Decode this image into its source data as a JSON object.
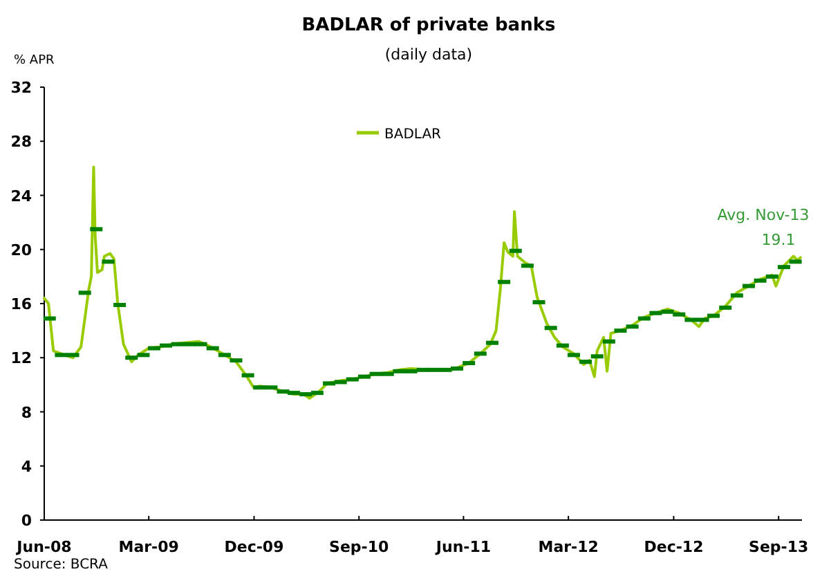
{
  "chart_data": {
    "type": "line",
    "title": "BADLAR of private banks",
    "subtitle": "(daily data)",
    "ylabel": "% APR",
    "xlim": [
      "2008-06-01",
      "2013-11-01"
    ],
    "xticks": [
      {
        "value": "2008-06-01",
        "label": "Jun-08"
      },
      {
        "value": "2009-03-01",
        "label": "Mar-09"
      },
      {
        "value": "2009-12-01",
        "label": "Dec-09"
      },
      {
        "value": "2010-09-01",
        "label": "Sep-10"
      },
      {
        "value": "2011-06-01",
        "label": "Jun-11"
      },
      {
        "value": "2012-03-01",
        "label": "Mar-12"
      },
      {
        "value": "2012-12-01",
        "label": "Dec-12"
      },
      {
        "value": "2013-09-01",
        "label": "Sep-13"
      }
    ],
    "ylim": [
      0,
      32
    ],
    "yticks": [
      0,
      4,
      8,
      12,
      16,
      20,
      24,
      28,
      32
    ],
    "grid": false,
    "legend": "top",
    "series": [
      {
        "name": "BADLAR",
        "color": "#99cc00",
        "marker": "none",
        "x": [
          "2008-06-01",
          "2008-06-12",
          "2008-06-25",
          "2008-07-15",
          "2008-08-15",
          "2008-09-05",
          "2008-09-25",
          "2008-10-02",
          "2008-10-08",
          "2008-10-12",
          "2008-10-18",
          "2008-10-30",
          "2008-11-05",
          "2008-11-20",
          "2008-11-30",
          "2008-12-10",
          "2008-12-25",
          "2009-01-15",
          "2009-02-01",
          "2009-03-01",
          "2009-04-01",
          "2009-05-01",
          "2009-06-01",
          "2009-07-10",
          "2009-08-10",
          "2009-09-10",
          "2009-10-15",
          "2009-11-10",
          "2009-11-30",
          "2009-12-15",
          "2010-01-15",
          "2010-02-15",
          "2010-03-15",
          "2010-04-10",
          "2010-04-25",
          "2010-05-20",
          "2010-06-10",
          "2010-07-15",
          "2010-08-15",
          "2010-09-15",
          "2010-10-15",
          "2010-11-15",
          "2010-12-15",
          "2011-01-15",
          "2011-03-01",
          "2011-05-01",
          "2011-06-15",
          "2011-07-15",
          "2011-08-10",
          "2011-08-25",
          "2011-09-05",
          "2011-09-15",
          "2011-09-25",
          "2011-10-08",
          "2011-10-12",
          "2011-10-20",
          "2011-11-10",
          "2011-11-25",
          "2011-12-10",
          "2012-01-05",
          "2012-01-25",
          "2012-02-15",
          "2012-03-15",
          "2012-04-10",
          "2012-04-25",
          "2012-05-08",
          "2012-05-15",
          "2012-06-01",
          "2012-06-10",
          "2012-06-20",
          "2012-07-15",
          "2012-08-15",
          "2012-09-15",
          "2012-10-15",
          "2012-11-15",
          "2012-12-15",
          "2013-01-15",
          "2013-02-05",
          "2013-02-20",
          "2013-03-15",
          "2013-04-15",
          "2013-05-15",
          "2013-06-15",
          "2013-07-15",
          "2013-08-15",
          "2013-08-25",
          "2013-09-15",
          "2013-10-10",
          "2013-10-20",
          "2013-10-28"
        ],
        "values": [
          16.4,
          16.0,
          12.5,
          12.3,
          12.0,
          12.8,
          17.0,
          18.0,
          26.1,
          21.0,
          18.3,
          18.5,
          19.5,
          19.7,
          19.3,
          16.0,
          13.0,
          11.7,
          12.2,
          12.7,
          12.8,
          13.0,
          13.1,
          13.2,
          12.8,
          12.3,
          11.7,
          10.7,
          9.8,
          9.9,
          9.8,
          9.5,
          9.3,
          9.3,
          9.0,
          9.5,
          10.1,
          10.3,
          10.4,
          10.6,
          10.8,
          10.9,
          11.1,
          11.2,
          11.1,
          11.1,
          11.6,
          12.3,
          13.0,
          14.0,
          17.0,
          20.5,
          19.8,
          19.5,
          22.8,
          19.5,
          19.0,
          18.8,
          16.5,
          14.5,
          13.5,
          12.8,
          12.3,
          11.5,
          11.8,
          10.6,
          12.5,
          13.5,
          11.0,
          13.8,
          14.0,
          14.4,
          15.0,
          15.3,
          15.6,
          15.3,
          14.8,
          14.3,
          14.9,
          15.1,
          15.8,
          16.8,
          17.3,
          17.8,
          18.1,
          17.3,
          18.8,
          19.5,
          19.2,
          19.4
        ]
      },
      {
        "type": "scatter",
        "color": "#008000",
        "marker": "square",
        "x": [
          "2008-06-15",
          "2008-07-15",
          "2008-08-15",
          "2008-09-15",
          "2008-10-15",
          "2008-11-15",
          "2008-12-15",
          "2009-01-15",
          "2009-02-15",
          "2009-03-15",
          "2009-04-15",
          "2009-05-15",
          "2009-06-15",
          "2009-07-15",
          "2009-08-15",
          "2009-09-15",
          "2009-10-15",
          "2009-11-15",
          "2009-12-15",
          "2010-01-15",
          "2010-02-15",
          "2010-03-15",
          "2010-04-15",
          "2010-05-15",
          "2010-06-15",
          "2010-07-15",
          "2010-08-15",
          "2010-09-15",
          "2010-10-15",
          "2010-11-15",
          "2010-12-15",
          "2011-01-15",
          "2011-02-15",
          "2011-03-15",
          "2011-04-15",
          "2011-05-15",
          "2011-06-15",
          "2011-07-15",
          "2011-08-15",
          "2011-09-15",
          "2011-10-15",
          "2011-11-15",
          "2011-12-15",
          "2012-01-15",
          "2012-02-15",
          "2012-03-15",
          "2012-04-15",
          "2012-05-15",
          "2012-06-15",
          "2012-07-15",
          "2012-08-15",
          "2012-09-15",
          "2012-10-15",
          "2012-11-15",
          "2012-12-15",
          "2013-01-15",
          "2013-02-15",
          "2013-03-15",
          "2013-04-15",
          "2013-05-15",
          "2013-06-15",
          "2013-07-15",
          "2013-08-15",
          "2013-09-15",
          "2013-10-15"
        ],
        "values": [
          14.9,
          12.2,
          12.2,
          16.8,
          21.5,
          19.1,
          15.9,
          12.0,
          12.2,
          12.7,
          12.9,
          13.0,
          13.0,
          13.0,
          12.7,
          12.2,
          11.8,
          10.7,
          9.8,
          9.8,
          9.5,
          9.4,
          9.3,
          9.4,
          10.1,
          10.2,
          10.4,
          10.6,
          10.8,
          10.8,
          11.0,
          11.0,
          11.1,
          11.1,
          11.1,
          11.2,
          11.6,
          12.3,
          13.1,
          17.6,
          19.9,
          18.8,
          16.1,
          14.2,
          12.9,
          12.2,
          11.7,
          12.1,
          13.2,
          14.0,
          14.3,
          14.9,
          15.3,
          15.4,
          15.2,
          14.8,
          14.8,
          15.1,
          15.7,
          16.6,
          17.3,
          17.7,
          18.0,
          18.7,
          19.1
        ]
      }
    ],
    "annotations": [
      {
        "text": "Avg. Nov-13\n19.1",
        "x": "2013-10-15",
        "y": 19.1
      },
      "Source: BCRA"
    ]
  }
}
